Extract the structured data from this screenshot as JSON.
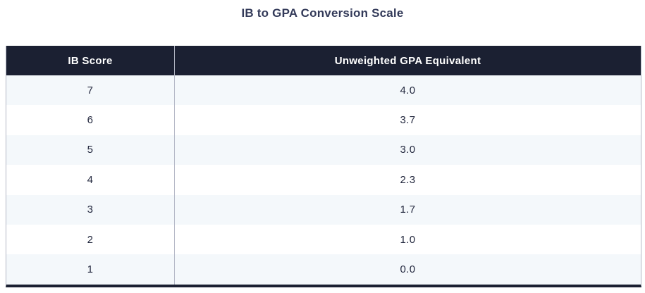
{
  "title": "IB to GPA Conversion Scale",
  "table": {
    "columns": [
      "IB Score",
      "Unweighted GPA Equivalent"
    ],
    "rows": [
      [
        "7",
        "4.0"
      ],
      [
        "6",
        "3.7"
      ],
      [
        "5",
        "3.0"
      ],
      [
        "4",
        "2.3"
      ],
      [
        "3",
        "1.7"
      ],
      [
        "2",
        "1.0"
      ],
      [
        "1",
        "0.0"
      ]
    ]
  },
  "chart_data": {
    "type": "table",
    "title": "IB to GPA Conversion Scale",
    "columns": [
      "IB Score",
      "Unweighted GPA Equivalent"
    ],
    "rows": [
      [
        7,
        4.0
      ],
      [
        6,
        3.7
      ],
      [
        5,
        3.0
      ],
      [
        4,
        2.3
      ],
      [
        3,
        1.7
      ],
      [
        2,
        1.0
      ],
      [
        1,
        0.0
      ]
    ]
  },
  "colors": {
    "header_bg": "#1b2032",
    "header_text": "#ffffff",
    "row_alt_bg": "#f4f8fb",
    "row_bg": "#ffffff",
    "border_light": "#b3b7c5",
    "border_dark": "#1b2032",
    "title_text": "#333a59",
    "cell_text": "#23283e"
  }
}
